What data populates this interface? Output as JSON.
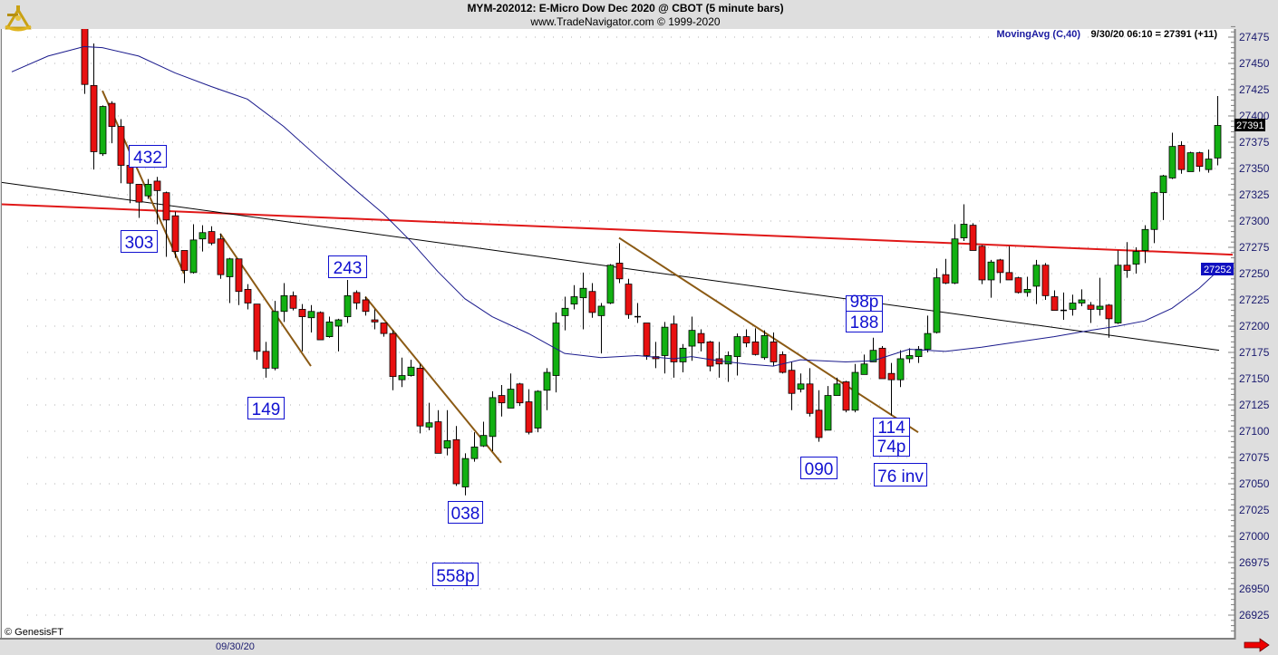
{
  "header": {
    "title": "MYM-202012:  E-Micro Dow Dec 2020 @ CBOT  (5 minute bars)",
    "subtitle": "www.TradeNavigator.com © 1999-2020"
  },
  "legend": {
    "indicator": "MovingAvg (C,40)",
    "readout": "9/30/20 06:10 = 27391 (+11)"
  },
  "footer": {
    "copyright": "© GenesisFT",
    "date_label": "09/30/20",
    "scroll_icon": "red-right-arrow-icon"
  },
  "logo_icon": "gold-sextant-logo-icon",
  "colors": {
    "up": "#12b012",
    "down": "#e81010",
    "moving_average": "#1a1a8c",
    "red_trendline": "#e01818",
    "black_trendline": "#000000",
    "brown_trendlines": "#8b5a14",
    "annotation": "#1010d0",
    "last_price_tag": "#000000",
    "ma_price_tag": "#1010c0"
  },
  "chart_data": {
    "type": "candlestick",
    "title": "MYM-202012:  E-Micro Dow Dec 2020 @ CBOT  (5 minute bars)",
    "x_axis": "bar index (5 minute bars, 09/30/20)",
    "ylim": [
      26910,
      27485
    ],
    "y_ticks": [
      27475,
      27450,
      27425,
      27400,
      27375,
      27350,
      27325,
      27300,
      27275,
      27250,
      27225,
      27200,
      27175,
      27150,
      27125,
      27100,
      27075,
      27050,
      27025,
      27000,
      26975,
      26950,
      26925
    ],
    "grid": "horizontal dotted",
    "ohlc": [
      [
        27485,
        27490,
        27421,
        27430
      ],
      [
        27429,
        27469,
        27349,
        27366
      ],
      [
        27364,
        27410,
        27362,
        27409
      ],
      [
        27412,
        27414,
        27374,
        27390
      ],
      [
        27390,
        27397,
        27336,
        27353
      ],
      [
        27353,
        27353,
        27317,
        27336
      ],
      [
        27335,
        27335,
        27303,
        27318
      ],
      [
        27324,
        27340,
        27321,
        27335
      ],
      [
        27338,
        27342,
        27297,
        27329
      ],
      [
        27327,
        27328,
        27266,
        27301
      ],
      [
        27305,
        27309,
        27265,
        27271
      ],
      [
        27272,
        27272,
        27241,
        27253
      ],
      [
        27251,
        27297,
        27250,
        27282
      ],
      [
        27283,
        27296,
        27271,
        27289
      ],
      [
        27290,
        27295,
        27277,
        27279
      ],
      [
        27283,
        27288,
        27245,
        27249
      ],
      [
        27247,
        27265,
        27222,
        27264
      ],
      [
        27264,
        27264,
        27220,
        27233
      ],
      [
        27235,
        27240,
        27216,
        27222
      ],
      [
        27221,
        27221,
        27168,
        27176
      ],
      [
        27176,
        27185,
        27151,
        27160
      ],
      [
        27160,
        27224,
        27158,
        27214
      ],
      [
        27214,
        27241,
        27204,
        27229
      ],
      [
        27229,
        27233,
        27215,
        27217
      ],
      [
        27216,
        27221,
        27176,
        27209
      ],
      [
        27208,
        27220,
        27194,
        27214
      ],
      [
        27213,
        27214,
        27187,
        27187
      ],
      [
        27190,
        27209,
        27189,
        27204
      ],
      [
        27200,
        27207,
        27176,
        27206
      ],
      [
        27209,
        27244,
        27203,
        27229
      ],
      [
        27232,
        27234,
        27216,
        27222
      ],
      [
        27225,
        27228,
        27210,
        27214
      ],
      [
        27206,
        27216,
        27197,
        27204
      ],
      [
        27203,
        27203,
        27190,
        27193
      ],
      [
        27193,
        27196,
        27139,
        27152
      ],
      [
        27149,
        27170,
        27142,
        27153
      ],
      [
        27153,
        27168,
        27152,
        27161
      ],
      [
        27160,
        27164,
        27098,
        27105
      ],
      [
        27104,
        27127,
        27101,
        27108
      ],
      [
        27109,
        27120,
        27079,
        27079
      ],
      [
        27084,
        27120,
        27077,
        27091
      ],
      [
        27092,
        27105,
        27048,
        27050
      ],
      [
        27047,
        27079,
        27039,
        27074
      ],
      [
        27074,
        27099,
        27071,
        27085
      ],
      [
        27086,
        27109,
        27085,
        27096
      ],
      [
        27095,
        27138,
        27081,
        27132
      ],
      [
        27134,
        27144,
        27114,
        27127
      ],
      [
        27122,
        27155,
        27122,
        27140
      ],
      [
        27145,
        27146,
        27124,
        27127
      ],
      [
        27128,
        27140,
        27097,
        27099
      ],
      [
        27103,
        27139,
        27099,
        27138
      ],
      [
        27139,
        27160,
        27120,
        27156
      ],
      [
        27153,
        27213,
        27137,
        27203
      ],
      [
        27210,
        27228,
        27196,
        27217
      ],
      [
        27221,
        27239,
        27216,
        27228
      ],
      [
        27227,
        27251,
        27197,
        27236
      ],
      [
        27233,
        27241,
        27208,
        27213
      ],
      [
        27210,
        27222,
        27174,
        27219
      ],
      [
        27222,
        27259,
        27221,
        27258
      ],
      [
        27260,
        27279,
        27241,
        27245
      ],
      [
        27240,
        27245,
        27207,
        27211
      ],
      [
        27209,
        27222,
        27203,
        27209
      ],
      [
        27203,
        27203,
        27168,
        27172
      ],
      [
        27171,
        27185,
        27160,
        27169
      ],
      [
        27172,
        27204,
        27155,
        27199
      ],
      [
        27202,
        27210,
        27151,
        27166
      ],
      [
        27166,
        27183,
        27156,
        27179
      ],
      [
        27181,
        27209,
        27167,
        27196
      ],
      [
        27193,
        27197,
        27176,
        27184
      ],
      [
        27185,
        27186,
        27157,
        27162
      ],
      [
        27169,
        27185,
        27151,
        27164
      ],
      [
        27164,
        27176,
        27147,
        27172
      ],
      [
        27171,
        27193,
        27153,
        27190
      ],
      [
        27190,
        27197,
        27180,
        27184
      ],
      [
        27185,
        27198,
        27172,
        27173
      ],
      [
        27170,
        27196,
        27168,
        27191
      ],
      [
        27185,
        27194,
        27162,
        27166
      ],
      [
        27173,
        27176,
        27155,
        27156
      ],
      [
        27158,
        27166,
        27120,
        27136
      ],
      [
        27140,
        27155,
        27137,
        27145
      ],
      [
        27145,
        27160,
        27114,
        27117
      ],
      [
        27120,
        27139,
        27090,
        27094
      ],
      [
        27101,
        27143,
        27101,
        27134
      ],
      [
        27134,
        27151,
        27134,
        27145
      ],
      [
        27147,
        27148,
        27118,
        27120
      ],
      [
        27120,
        27164,
        27118,
        27156
      ],
      [
        27154,
        27173,
        27154,
        27164
      ],
      [
        27166,
        27189,
        27166,
        27177
      ],
      [
        27179,
        27181,
        27150,
        27150
      ],
      [
        27155,
        27165,
        27115,
        27149
      ],
      [
        27149,
        27177,
        27142,
        27169
      ],
      [
        27169,
        27179,
        27165,
        27172
      ],
      [
        27171,
        27181,
        27165,
        27178
      ],
      [
        27178,
        27210,
        27175,
        27193
      ],
      [
        27194,
        27255,
        27193,
        27246
      ],
      [
        27249,
        27264,
        27240,
        27241
      ],
      [
        27241,
        27297,
        27240,
        27283
      ],
      [
        27284,
        27316,
        27281,
        27297
      ],
      [
        27296,
        27298,
        27272,
        27272
      ],
      [
        27276,
        27277,
        27240,
        27244
      ],
      [
        27244,
        27263,
        27227,
        27261
      ],
      [
        27263,
        27264,
        27241,
        27251
      ],
      [
        27251,
        27276,
        27244,
        27244
      ],
      [
        27246,
        27247,
        27231,
        27232
      ],
      [
        27232,
        27247,
        27228,
        27235
      ],
      [
        27238,
        27263,
        27221,
        27258
      ],
      [
        27258,
        27260,
        27225,
        27229
      ],
      [
        27228,
        27234,
        27215,
        27215
      ],
      [
        27215,
        27232,
        27206,
        27215
      ],
      [
        27216,
        27230,
        27210,
        27222
      ],
      [
        27222,
        27235,
        27219,
        27225
      ],
      [
        27220,
        27223,
        27203,
        27216
      ],
      [
        27216,
        27246,
        27210,
        27219
      ],
      [
        27220,
        27221,
        27189,
        27207
      ],
      [
        27203,
        27272,
        27202,
        27258
      ],
      [
        27258,
        27280,
        27246,
        27253
      ],
      [
        27259,
        27275,
        27250,
        27271
      ],
      [
        27272,
        27296,
        27260,
        27292
      ],
      [
        27292,
        27328,
        27279,
        27327
      ],
      [
        27327,
        27344,
        27301,
        27343
      ],
      [
        27341,
        27384,
        27340,
        27371
      ],
      [
        27372,
        27376,
        27345,
        27349
      ],
      [
        27347,
        27366,
        27347,
        27365
      ],
      [
        27365,
        27366,
        27347,
        27352
      ],
      [
        27349,
        27368,
        27346,
        27359
      ],
      [
        27360,
        27419,
        27353,
        27391
      ]
    ],
    "moving_average": {
      "name": "MovingAvg (C,40)",
      "points": [
        [
          -8,
          27442
        ],
        [
          -4,
          27457
        ],
        [
          0,
          27466
        ],
        [
          2,
          27465
        ],
        [
          6,
          27457
        ],
        [
          10,
          27441
        ],
        [
          14,
          27428
        ],
        [
          18,
          27416
        ],
        [
          22,
          27390
        ],
        [
          26,
          27359
        ],
        [
          30,
          27329
        ],
        [
          33,
          27307
        ],
        [
          36,
          27281
        ],
        [
          39,
          27252
        ],
        [
          42,
          27226
        ],
        [
          45,
          27209
        ],
        [
          49,
          27193
        ],
        [
          53,
          27174
        ],
        [
          57,
          27170
        ],
        [
          61,
          27172
        ],
        [
          65,
          27169
        ],
        [
          67,
          27171
        ],
        [
          70,
          27167
        ],
        [
          73,
          27164
        ],
        [
          76,
          27162
        ],
        [
          79,
          27168
        ],
        [
          84,
          27166
        ],
        [
          87,
          27167
        ],
        [
          91,
          27178
        ],
        [
          95,
          27176
        ],
        [
          99,
          27180
        ],
        [
          103,
          27185
        ],
        [
          107,
          27190
        ],
        [
          111,
          27196
        ],
        [
          114,
          27200
        ],
        [
          117,
          27205
        ],
        [
          120,
          27217
        ],
        [
          123,
          27236
        ],
        [
          125,
          27252
        ]
      ]
    },
    "trendlines": [
      {
        "color": "red",
        "from": [
          -9.3,
          27316
        ],
        "to": [
          126.7,
          27268
        ]
      },
      {
        "color": "black",
        "from": [
          -9.3,
          27337
        ],
        "to": [
          125.2,
          27177
        ]
      },
      {
        "color": "brown",
        "from": [
          2,
          27424
        ],
        "to": [
          11,
          27250
        ]
      },
      {
        "color": "brown",
        "from": [
          15,
          27288
        ],
        "to": [
          25,
          27162
        ]
      },
      {
        "color": "brown",
        "from": [
          31,
          27228
        ],
        "to": [
          46,
          27070
        ]
      },
      {
        "color": "brown",
        "from": [
          59,
          27284
        ],
        "to": [
          92,
          27099
        ]
      }
    ],
    "annotations": [
      "432",
      "303",
      "243",
      "149",
      "038",
      "558p",
      "090",
      "98p",
      "188",
      "114",
      "74p",
      "76 inv"
    ],
    "price_tags": {
      "last": "27391",
      "moving_average": "27252"
    }
  }
}
